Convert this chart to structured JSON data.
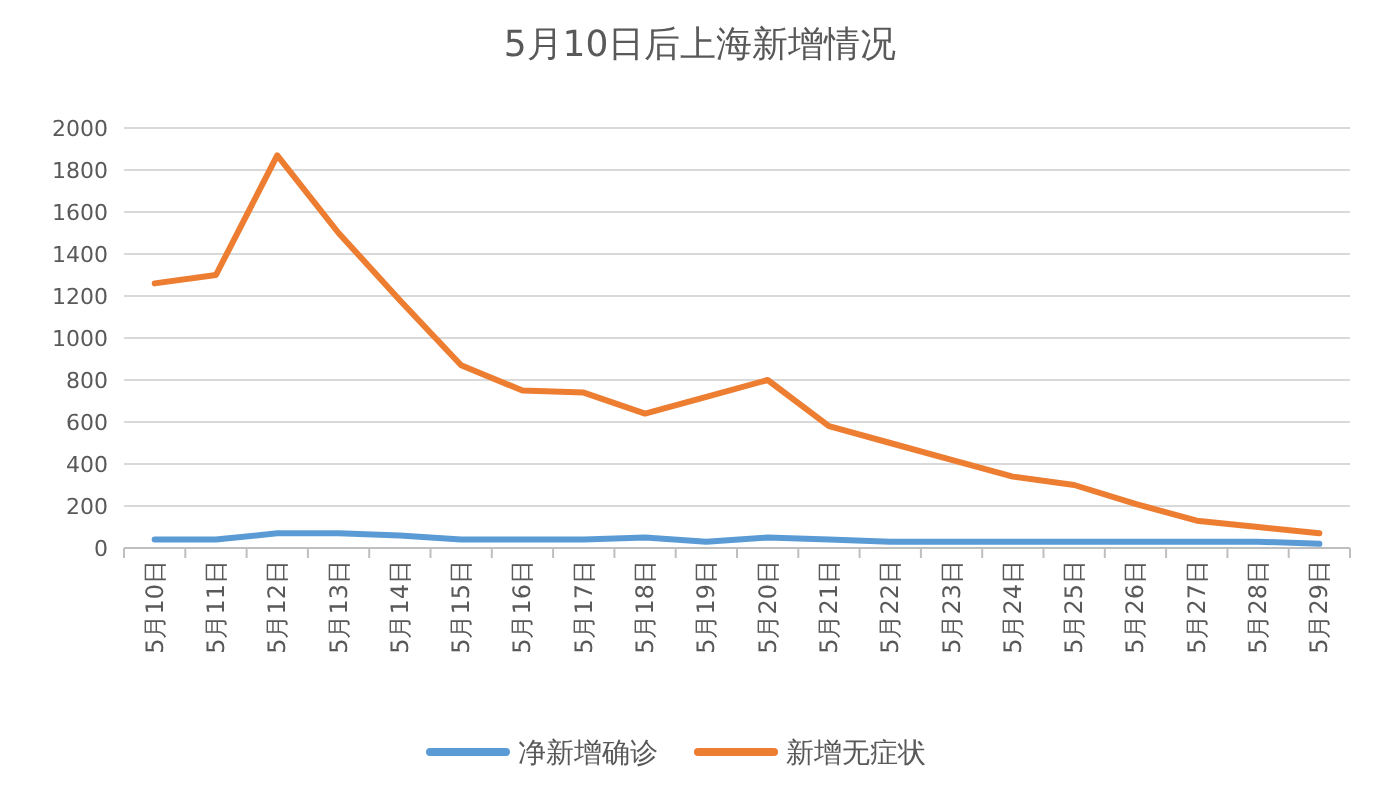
{
  "chart_data": {
    "type": "line",
    "title": "5月10日后上海新增情况",
    "categories": [
      "5月10日",
      "5月11日",
      "5月12日",
      "5月13日",
      "5月14日",
      "5月15日",
      "5月16日",
      "5月17日",
      "5月18日",
      "5月19日",
      "5月20日",
      "5月21日",
      "5月22日",
      "5月23日",
      "5月24日",
      "5月25日",
      "5月26日",
      "5月27日",
      "5月28日",
      "5月29日"
    ],
    "series": [
      {
        "name": "净新增确诊",
        "color": "#5b9bd5",
        "values": [
          40,
          40,
          70,
          70,
          60,
          40,
          40,
          40,
          50,
          30,
          50,
          40,
          30,
          30,
          30,
          30,
          30,
          30,
          30,
          20
        ]
      },
      {
        "name": "新增无症状",
        "color": "#ed7d31",
        "values": [
          1260,
          1300,
          1870,
          1500,
          1180,
          870,
          750,
          740,
          640,
          720,
          800,
          580,
          500,
          420,
          340,
          300,
          210,
          130,
          100,
          70
        ]
      }
    ],
    "ylim": [
      0,
      2000
    ],
    "yticks": [
      0,
      200,
      400,
      600,
      800,
      1000,
      1200,
      1400,
      1600,
      1800,
      2000
    ],
    "grid": "y",
    "legend": "bottom",
    "marker": "none",
    "line_style": "solid"
  }
}
